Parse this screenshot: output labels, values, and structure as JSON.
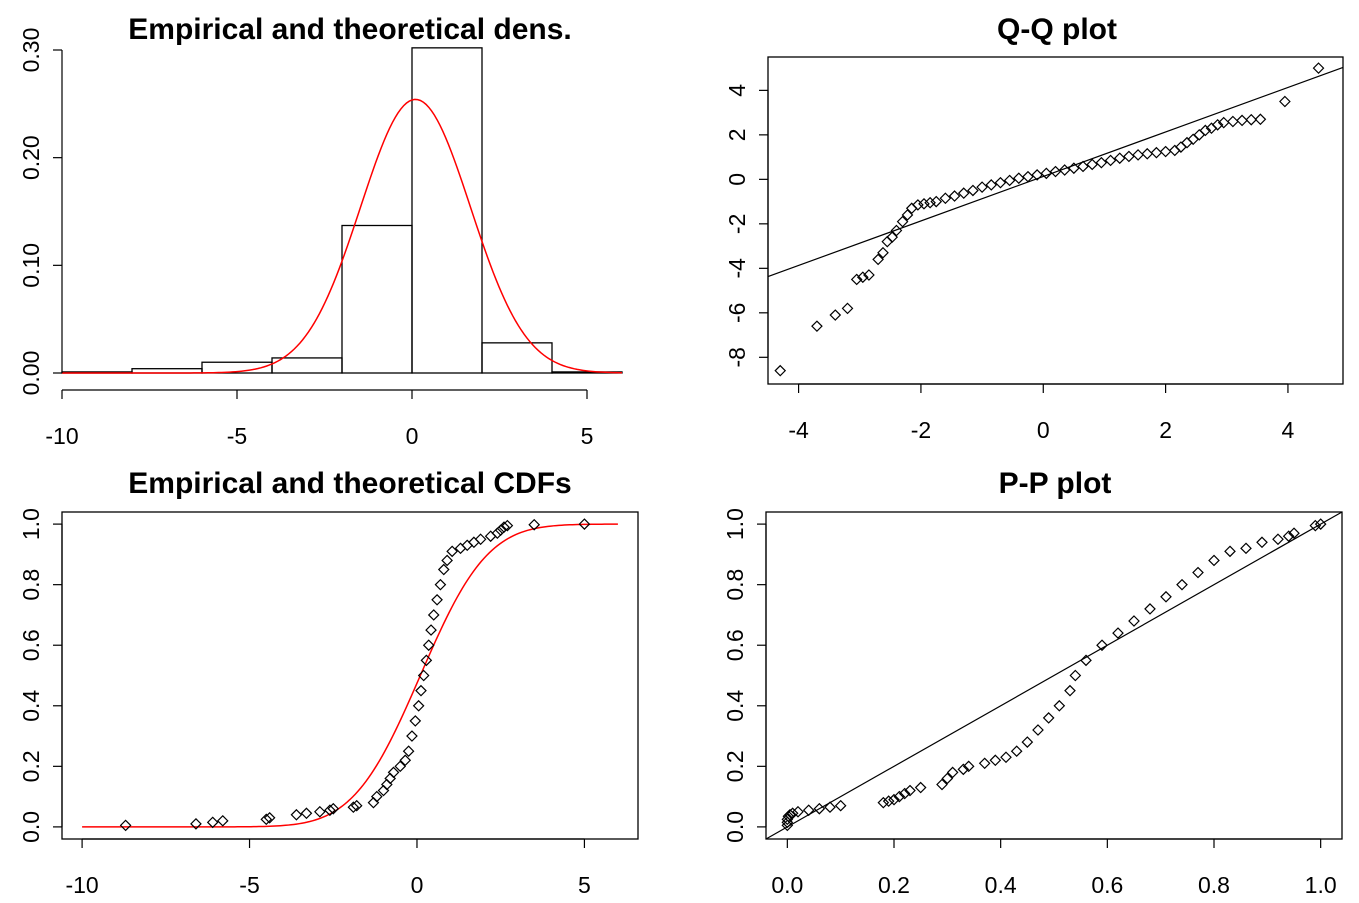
{
  "chart_data": [
    {
      "type": "bar",
      "title": "Empirical and theoretical dens.",
      "xlabel": "",
      "ylabel": "",
      "xlim": [
        -10,
        6
      ],
      "ylim": [
        0,
        0.3
      ],
      "x_ticks": [
        -10,
        -5,
        0,
        5
      ],
      "x_tick_labels": [
        "-10",
        "-5",
        "0",
        "5"
      ],
      "y_ticks": [
        0,
        0.1,
        0.2,
        0.3
      ],
      "y_tick_labels": [
        "0.00",
        "0.10",
        "0.20",
        "0.30"
      ],
      "frame": false,
      "bins": [
        {
          "x0": -10,
          "x1": -8,
          "density": 0.001
        },
        {
          "x0": -8,
          "x1": -6,
          "density": 0.004
        },
        {
          "x0": -6,
          "x1": -4,
          "density": 0.01
        },
        {
          "x0": -4,
          "x1": -2,
          "density": 0.014
        },
        {
          "x0": -2,
          "x1": 0,
          "density": 0.137
        },
        {
          "x0": 0,
          "x1": 2,
          "density": 0.302
        },
        {
          "x0": 2,
          "x1": 4,
          "density": 0.028
        },
        {
          "x0": 4,
          "x1": 6,
          "density": 0.001
        }
      ],
      "curve": {
        "type": "normal-density",
        "mean": 0.1,
        "sd": 1.57,
        "color": "#ff0000"
      }
    },
    {
      "type": "scatter",
      "title": "Q-Q plot",
      "xlabel": "",
      "ylabel": "",
      "xlim": [
        -4.5,
        4.9
      ],
      "ylim": [
        -9.2,
        5.5
      ],
      "x_ticks": [
        -4,
        -2,
        0,
        2,
        4
      ],
      "x_tick_labels": [
        "-4",
        "-2",
        "0",
        "2",
        "4"
      ],
      "y_ticks": [
        -8,
        -6,
        -4,
        -2,
        0,
        2,
        4
      ],
      "y_tick_labels": [
        "-8",
        "-6",
        "-4",
        "-2",
        "0",
        "2",
        "4"
      ],
      "frame": true,
      "reference_line": {
        "intercept": 0.13,
        "slope": 1.0
      },
      "points": [
        {
          "x": -4.3,
          "y": -8.6
        },
        {
          "x": -3.7,
          "y": -6.6
        },
        {
          "x": -3.4,
          "y": -6.1
        },
        {
          "x": -3.2,
          "y": -5.8
        },
        {
          "x": -3.05,
          "y": -4.5
        },
        {
          "x": -2.95,
          "y": -4.4
        },
        {
          "x": -2.85,
          "y": -4.3
        },
        {
          "x": -2.7,
          "y": -3.6
        },
        {
          "x": -2.62,
          "y": -3.3
        },
        {
          "x": -2.55,
          "y": -2.8
        },
        {
          "x": -2.47,
          "y": -2.6
        },
        {
          "x": -2.4,
          "y": -2.3
        },
        {
          "x": -2.3,
          "y": -1.9
        },
        {
          "x": -2.22,
          "y": -1.6
        },
        {
          "x": -2.15,
          "y": -1.3
        },
        {
          "x": -2.05,
          "y": -1.15
        },
        {
          "x": -1.95,
          "y": -1.1
        },
        {
          "x": -1.85,
          "y": -1.05
        },
        {
          "x": -1.75,
          "y": -1.0
        },
        {
          "x": -1.6,
          "y": -0.85
        },
        {
          "x": -1.45,
          "y": -0.75
        },
        {
          "x": -1.3,
          "y": -0.62
        },
        {
          "x": -1.15,
          "y": -0.5
        },
        {
          "x": -1.0,
          "y": -0.35
        },
        {
          "x": -0.85,
          "y": -0.25
        },
        {
          "x": -0.7,
          "y": -0.15
        },
        {
          "x": -0.55,
          "y": -0.05
        },
        {
          "x": -0.4,
          "y": 0.05
        },
        {
          "x": -0.25,
          "y": 0.12
        },
        {
          "x": -0.1,
          "y": 0.2
        },
        {
          "x": 0.05,
          "y": 0.27
        },
        {
          "x": 0.2,
          "y": 0.35
        },
        {
          "x": 0.35,
          "y": 0.42
        },
        {
          "x": 0.5,
          "y": 0.5
        },
        {
          "x": 0.65,
          "y": 0.58
        },
        {
          "x": 0.8,
          "y": 0.67
        },
        {
          "x": 0.95,
          "y": 0.75
        },
        {
          "x": 1.1,
          "y": 0.85
        },
        {
          "x": 1.25,
          "y": 0.95
        },
        {
          "x": 1.4,
          "y": 1.03
        },
        {
          "x": 1.55,
          "y": 1.1
        },
        {
          "x": 1.7,
          "y": 1.15
        },
        {
          "x": 1.85,
          "y": 1.2
        },
        {
          "x": 2.0,
          "y": 1.25
        },
        {
          "x": 2.15,
          "y": 1.3
        },
        {
          "x": 2.25,
          "y": 1.45
        },
        {
          "x": 2.35,
          "y": 1.65
        },
        {
          "x": 2.45,
          "y": 1.8
        },
        {
          "x": 2.55,
          "y": 2.0
        },
        {
          "x": 2.65,
          "y": 2.2
        },
        {
          "x": 2.75,
          "y": 2.3
        },
        {
          "x": 2.85,
          "y": 2.45
        },
        {
          "x": 2.95,
          "y": 2.55
        },
        {
          "x": 3.1,
          "y": 2.6
        },
        {
          "x": 3.25,
          "y": 2.65
        },
        {
          "x": 3.4,
          "y": 2.68
        },
        {
          "x": 3.55,
          "y": 2.7
        },
        {
          "x": 3.95,
          "y": 3.5
        },
        {
          "x": 4.5,
          "y": 5.0
        }
      ]
    },
    {
      "type": "scatter",
      "title": "Empirical and theoretical CDFs",
      "xlabel": "",
      "ylabel": "",
      "xlim": [
        -10.6,
        6.6
      ],
      "ylim": [
        -0.04,
        1.04
      ],
      "x_ticks": [
        -10,
        -5,
        0,
        5
      ],
      "x_tick_labels": [
        "-10",
        "-5",
        "0",
        "5"
      ],
      "y_ticks": [
        0,
        0.2,
        0.4,
        0.6,
        0.8,
        1.0
      ],
      "y_tick_labels": [
        "0.0",
        "0.2",
        "0.4",
        "0.6",
        "0.8",
        "1.0"
      ],
      "frame": true,
      "curve": {
        "type": "normal-cdf",
        "mean": 0.1,
        "sd": 1.57,
        "color": "#ff0000",
        "xrange": [
          -10,
          6
        ]
      },
      "points": [
        {
          "x": -8.7,
          "y": 0.005
        },
        {
          "x": -6.6,
          "y": 0.01
        },
        {
          "x": -6.1,
          "y": 0.015
        },
        {
          "x": -5.8,
          "y": 0.02
        },
        {
          "x": -4.5,
          "y": 0.025
        },
        {
          "x": -4.4,
          "y": 0.03
        },
        {
          "x": -3.6,
          "y": 0.04
        },
        {
          "x": -3.3,
          "y": 0.045
        },
        {
          "x": -2.9,
          "y": 0.05
        },
        {
          "x": -2.6,
          "y": 0.055
        },
        {
          "x": -2.5,
          "y": 0.06
        },
        {
          "x": -1.9,
          "y": 0.065
        },
        {
          "x": -1.8,
          "y": 0.07
        },
        {
          "x": -1.3,
          "y": 0.08
        },
        {
          "x": -1.2,
          "y": 0.1
        },
        {
          "x": -1.0,
          "y": 0.12
        },
        {
          "x": -0.9,
          "y": 0.14
        },
        {
          "x": -0.8,
          "y": 0.16
        },
        {
          "x": -0.7,
          "y": 0.18
        },
        {
          "x": -0.5,
          "y": 0.2
        },
        {
          "x": -0.35,
          "y": 0.22
        },
        {
          "x": -0.25,
          "y": 0.25
        },
        {
          "x": -0.15,
          "y": 0.3
        },
        {
          "x": -0.05,
          "y": 0.35
        },
        {
          "x": 0.05,
          "y": 0.4
        },
        {
          "x": 0.12,
          "y": 0.45
        },
        {
          "x": 0.2,
          "y": 0.5
        },
        {
          "x": 0.28,
          "y": 0.55
        },
        {
          "x": 0.35,
          "y": 0.6
        },
        {
          "x": 0.42,
          "y": 0.65
        },
        {
          "x": 0.5,
          "y": 0.7
        },
        {
          "x": 0.6,
          "y": 0.75
        },
        {
          "x": 0.7,
          "y": 0.8
        },
        {
          "x": 0.8,
          "y": 0.85
        },
        {
          "x": 0.9,
          "y": 0.88
        },
        {
          "x": 1.05,
          "y": 0.91
        },
        {
          "x": 1.3,
          "y": 0.92
        },
        {
          "x": 1.5,
          "y": 0.93
        },
        {
          "x": 1.7,
          "y": 0.94
        },
        {
          "x": 1.9,
          "y": 0.95
        },
        {
          "x": 2.2,
          "y": 0.96
        },
        {
          "x": 2.4,
          "y": 0.97
        },
        {
          "x": 2.5,
          "y": 0.98
        },
        {
          "x": 2.6,
          "y": 0.99
        },
        {
          "x": 2.7,
          "y": 0.995
        },
        {
          "x": 3.5,
          "y": 0.998
        },
        {
          "x": 5.0,
          "y": 1.0
        }
      ]
    },
    {
      "type": "scatter",
      "title": "P-P plot",
      "xlabel": "",
      "ylabel": "",
      "xlim": [
        -0.04,
        1.04
      ],
      "ylim": [
        -0.04,
        1.04
      ],
      "x_ticks": [
        0,
        0.2,
        0.4,
        0.6,
        0.8,
        1.0
      ],
      "x_tick_labels": [
        "0.0",
        "0.2",
        "0.4",
        "0.6",
        "0.8",
        "1.0"
      ],
      "y_ticks": [
        0,
        0.2,
        0.4,
        0.6,
        0.8,
        1.0
      ],
      "y_tick_labels": [
        "0.0",
        "0.2",
        "0.4",
        "0.6",
        "0.8",
        "1.0"
      ],
      "frame": true,
      "reference_line": {
        "intercept": 0,
        "slope": 1
      },
      "points": [
        {
          "x": 0.0,
          "y": 0.005
        },
        {
          "x": 0.0,
          "y": 0.015
        },
        {
          "x": 0.0,
          "y": 0.025
        },
        {
          "x": 0.002,
          "y": 0.035
        },
        {
          "x": 0.005,
          "y": 0.04
        },
        {
          "x": 0.01,
          "y": 0.045
        },
        {
          "x": 0.02,
          "y": 0.05
        },
        {
          "x": 0.04,
          "y": 0.055
        },
        {
          "x": 0.06,
          "y": 0.06
        },
        {
          "x": 0.08,
          "y": 0.065
        },
        {
          "x": 0.1,
          "y": 0.07
        },
        {
          "x": 0.18,
          "y": 0.08
        },
        {
          "x": 0.19,
          "y": 0.085
        },
        {
          "x": 0.2,
          "y": 0.09
        },
        {
          "x": 0.21,
          "y": 0.1
        },
        {
          "x": 0.22,
          "y": 0.11
        },
        {
          "x": 0.23,
          "y": 0.12
        },
        {
          "x": 0.25,
          "y": 0.13
        },
        {
          "x": 0.29,
          "y": 0.14
        },
        {
          "x": 0.3,
          "y": 0.16
        },
        {
          "x": 0.31,
          "y": 0.18
        },
        {
          "x": 0.33,
          "y": 0.19
        },
        {
          "x": 0.34,
          "y": 0.2
        },
        {
          "x": 0.37,
          "y": 0.21
        },
        {
          "x": 0.39,
          "y": 0.22
        },
        {
          "x": 0.41,
          "y": 0.23
        },
        {
          "x": 0.43,
          "y": 0.25
        },
        {
          "x": 0.45,
          "y": 0.28
        },
        {
          "x": 0.47,
          "y": 0.32
        },
        {
          "x": 0.49,
          "y": 0.36
        },
        {
          "x": 0.51,
          "y": 0.4
        },
        {
          "x": 0.53,
          "y": 0.45
        },
        {
          "x": 0.54,
          "y": 0.5
        },
        {
          "x": 0.56,
          "y": 0.55
        },
        {
          "x": 0.59,
          "y": 0.6
        },
        {
          "x": 0.62,
          "y": 0.64
        },
        {
          "x": 0.65,
          "y": 0.68
        },
        {
          "x": 0.68,
          "y": 0.72
        },
        {
          "x": 0.71,
          "y": 0.76
        },
        {
          "x": 0.74,
          "y": 0.8
        },
        {
          "x": 0.77,
          "y": 0.84
        },
        {
          "x": 0.8,
          "y": 0.88
        },
        {
          "x": 0.83,
          "y": 0.91
        },
        {
          "x": 0.86,
          "y": 0.92
        },
        {
          "x": 0.89,
          "y": 0.94
        },
        {
          "x": 0.92,
          "y": 0.95
        },
        {
          "x": 0.94,
          "y": 0.96
        },
        {
          "x": 0.95,
          "y": 0.97
        },
        {
          "x": 0.99,
          "y": 0.995
        },
        {
          "x": 1.0,
          "y": 1.0
        }
      ]
    }
  ]
}
